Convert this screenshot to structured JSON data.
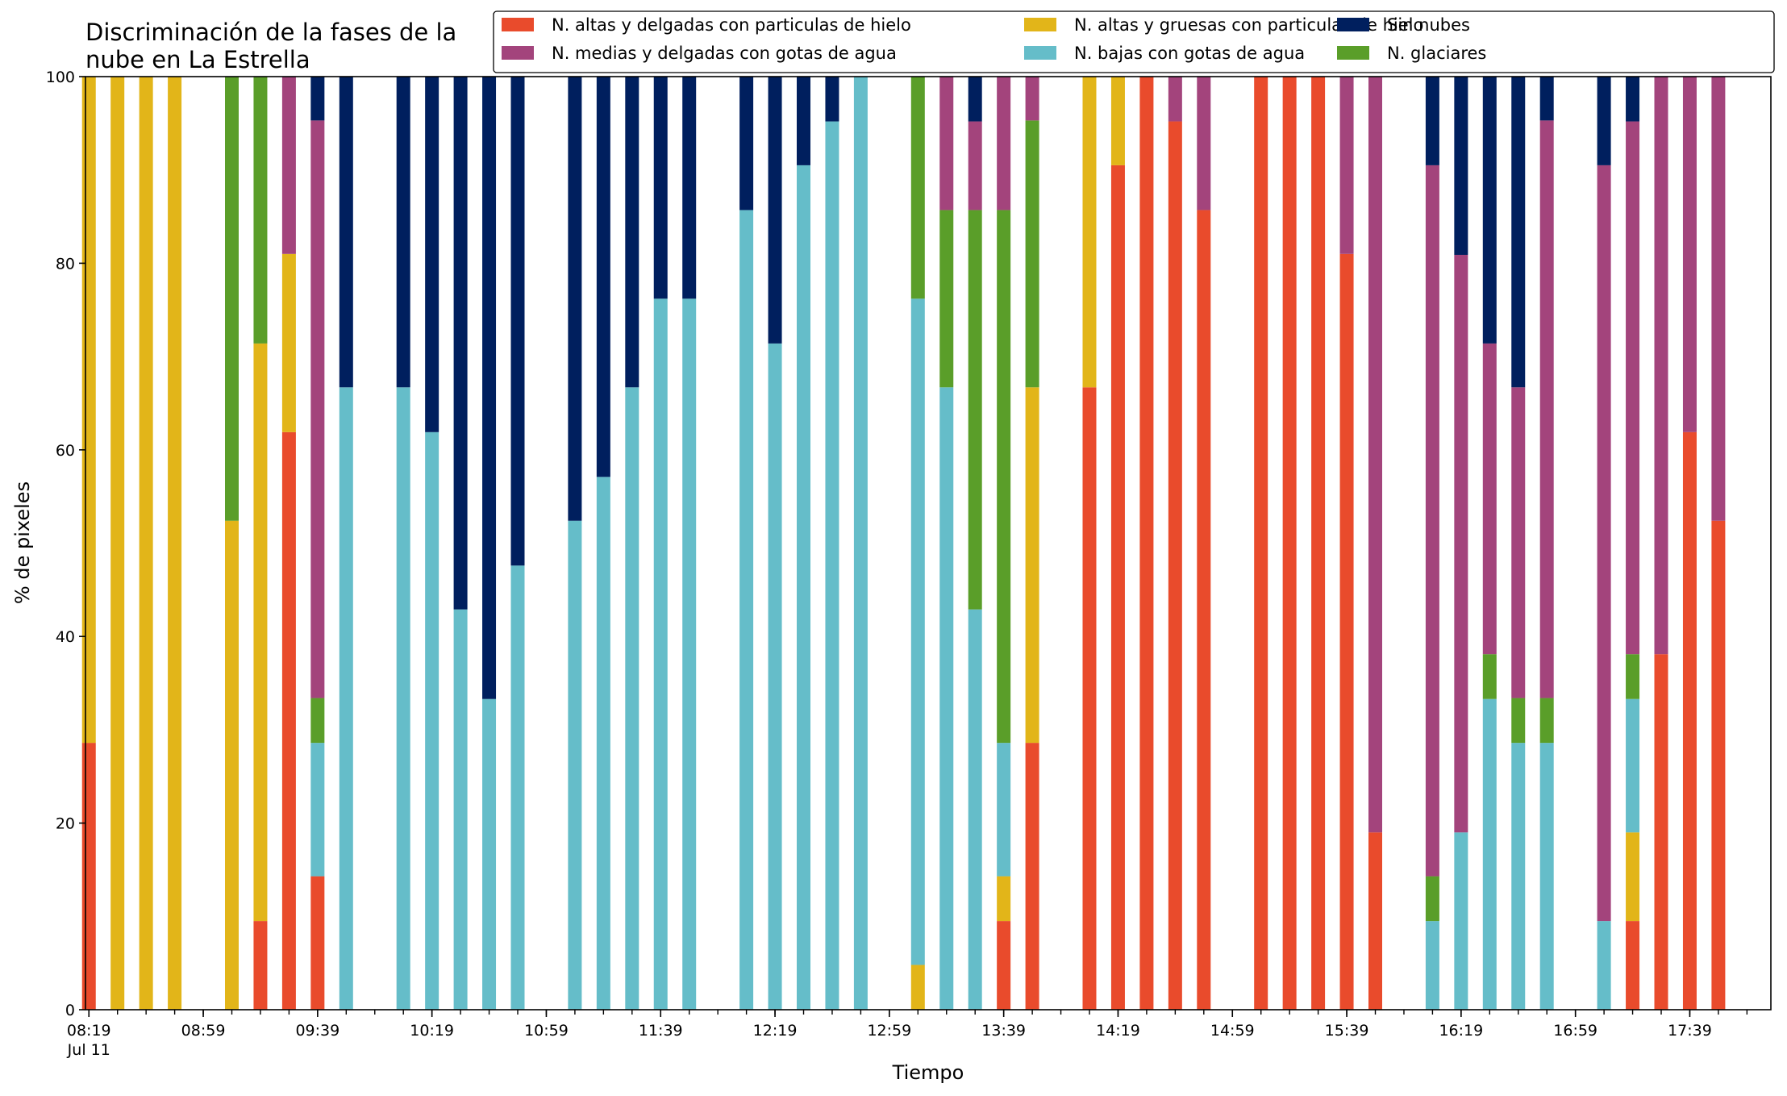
{
  "chart_data": {
    "type": "bar",
    "stacked": true,
    "title": "Discriminación de la fases de la\nnube en La Estrella",
    "xlabel": "Tiempo",
    "ylabel": "% de pixeles",
    "ylim": [
      0,
      100
    ],
    "yticks": [
      0,
      20,
      40,
      60,
      80,
      100
    ],
    "x_axis": {
      "start": "08:19",
      "end": "17:59",
      "minor_tick_minutes": 10,
      "major_tick_labels": [
        "08:19",
        "08:59",
        "09:39",
        "10:19",
        "10:59",
        "11:39",
        "12:19",
        "12:59",
        "13:39",
        "14:19",
        "14:59",
        "15:39",
        "16:19",
        "16:59",
        "17:39"
      ],
      "first_tick_sublabel": "Jul 11"
    },
    "grid": false,
    "legend": {
      "placement": "top-right",
      "columns": 3
    },
    "series": [
      {
        "name": "N. altas y delgadas con particulas de hielo",
        "color": "#E94B2C"
      },
      {
        "name": "N. altas y gruesas con particulas de hielo",
        "color": "#E2B519"
      },
      {
        "name": "N. bajas con gotas de agua",
        "color": "#65BDC9"
      },
      {
        "name": "N. glaciares",
        "color": "#5A9E29"
      },
      {
        "name": "N. medias y delgadas con gotas de agua",
        "color": "#A3447C"
      },
      {
        "name": "Sin nubes",
        "color": "#001F5E"
      }
    ],
    "legend_order": [
      0,
      4,
      1,
      2,
      5,
      3
    ],
    "times": [
      "08:19",
      "08:29",
      "08:39",
      "08:49",
      "08:59",
      "09:09",
      "09:19",
      "09:29",
      "09:39",
      "09:49",
      "09:59",
      "10:09",
      "10:19",
      "10:29",
      "10:39",
      "10:49",
      "10:59",
      "11:09",
      "11:19",
      "11:29",
      "11:39",
      "11:49",
      "11:59",
      "12:09",
      "12:19",
      "12:29",
      "12:39",
      "12:49",
      "12:59",
      "13:09",
      "13:19",
      "13:29",
      "13:39",
      "13:49",
      "13:59",
      "14:09",
      "14:19",
      "14:29",
      "14:39",
      "14:49",
      "14:59",
      "15:09",
      "15:19",
      "15:29",
      "15:39",
      "15:49",
      "15:59",
      "16:09",
      "16:19",
      "16:29",
      "16:39",
      "16:49",
      "16:59",
      "17:09",
      "17:19",
      "17:29",
      "17:39",
      "17:49"
    ],
    "bars": [
      {
        "time": "08:19",
        "values": [
          28.6,
          71.4,
          0,
          0,
          0,
          0
        ]
      },
      {
        "time": "08:29",
        "values": [
          0,
          100,
          0,
          0,
          0,
          0
        ]
      },
      {
        "time": "08:39",
        "values": [
          0,
          100,
          0,
          0,
          0,
          0
        ]
      },
      {
        "time": "08:49",
        "values": [
          0,
          100,
          0,
          0,
          0,
          0
        ]
      },
      {
        "time": "09:09",
        "values": [
          0,
          52.4,
          0,
          47.6,
          0,
          0
        ]
      },
      {
        "time": "09:19",
        "values": [
          9.5,
          61.9,
          0,
          28.6,
          0,
          0
        ]
      },
      {
        "time": "09:29",
        "values": [
          61.9,
          19.1,
          0,
          0,
          19.0,
          0
        ]
      },
      {
        "time": "09:39",
        "values": [
          14.3,
          0,
          14.3,
          4.8,
          61.9,
          4.7
        ]
      },
      {
        "time": "09:49",
        "values": [
          0,
          0,
          66.7,
          0,
          0,
          33.3
        ]
      },
      {
        "time": "10:09",
        "values": [
          0,
          0,
          66.7,
          0,
          0,
          33.3
        ]
      },
      {
        "time": "10:19",
        "values": [
          0,
          0,
          61.9,
          0,
          0,
          38.1
        ]
      },
      {
        "time": "10:29",
        "values": [
          0,
          0,
          42.9,
          0,
          0,
          57.1
        ]
      },
      {
        "time": "10:39",
        "values": [
          0,
          0,
          33.3,
          0,
          0,
          66.7
        ]
      },
      {
        "time": "10:49",
        "values": [
          0,
          0,
          47.6,
          0,
          0,
          52.4
        ]
      },
      {
        "time": "11:09",
        "values": [
          0,
          0,
          52.4,
          0,
          0,
          47.6
        ]
      },
      {
        "time": "11:19",
        "values": [
          0,
          0,
          57.1,
          0,
          0,
          42.9
        ]
      },
      {
        "time": "11:29",
        "values": [
          0,
          0,
          66.7,
          0,
          0,
          33.3
        ]
      },
      {
        "time": "11:39",
        "values": [
          0,
          0,
          76.2,
          0,
          0,
          23.8
        ]
      },
      {
        "time": "11:49",
        "values": [
          0,
          0,
          76.2,
          0,
          0,
          23.8
        ]
      },
      {
        "time": "12:09",
        "values": [
          0,
          0,
          85.7,
          0,
          0,
          14.3
        ]
      },
      {
        "time": "12:19",
        "values": [
          0,
          0,
          71.4,
          0,
          0,
          28.6
        ]
      },
      {
        "time": "12:29",
        "values": [
          0,
          0,
          90.5,
          0,
          0,
          9.5
        ]
      },
      {
        "time": "12:39",
        "values": [
          0,
          0,
          95.2,
          0,
          0,
          4.8
        ]
      },
      {
        "time": "12:49",
        "values": [
          0,
          0,
          100,
          0,
          0,
          0
        ]
      },
      {
        "time": "13:09",
        "values": [
          0,
          4.8,
          71.4,
          23.8,
          0,
          0
        ]
      },
      {
        "time": "13:19",
        "values": [
          0,
          0,
          66.7,
          19.0,
          14.3,
          0
        ]
      },
      {
        "time": "13:29",
        "values": [
          0,
          0,
          42.9,
          42.8,
          9.5,
          4.8
        ]
      },
      {
        "time": "13:39",
        "values": [
          9.5,
          4.8,
          14.3,
          57.1,
          14.3,
          0
        ]
      },
      {
        "time": "13:49",
        "values": [
          28.6,
          38.1,
          0,
          28.6,
          4.7,
          0
        ]
      },
      {
        "time": "14:09",
        "values": [
          66.7,
          33.3,
          0,
          0,
          0,
          0
        ]
      },
      {
        "time": "14:19",
        "values": [
          90.5,
          9.5,
          0,
          0,
          0,
          0
        ]
      },
      {
        "time": "14:29",
        "values": [
          100,
          0,
          0,
          0,
          0,
          0
        ]
      },
      {
        "time": "14:39",
        "values": [
          95.2,
          0,
          0,
          0,
          4.8,
          0
        ]
      },
      {
        "time": "14:49",
        "values": [
          85.7,
          0,
          0,
          0,
          14.3,
          0
        ]
      },
      {
        "time": "15:09",
        "values": [
          100,
          0,
          0,
          0,
          0,
          0
        ]
      },
      {
        "time": "15:19",
        "values": [
          100,
          0,
          0,
          0,
          0,
          0
        ]
      },
      {
        "time": "15:29",
        "values": [
          100,
          0,
          0,
          0,
          0,
          0
        ]
      },
      {
        "time": "15:39",
        "values": [
          81.0,
          0,
          0,
          0,
          19.0,
          0
        ]
      },
      {
        "time": "15:49",
        "values": [
          19.0,
          0,
          0,
          0,
          81.0,
          0
        ]
      },
      {
        "time": "16:09",
        "values": [
          0,
          0,
          9.5,
          4.8,
          76.2,
          9.5
        ]
      },
      {
        "time": "16:19",
        "values": [
          0,
          0,
          19.0,
          0,
          61.9,
          19.1
        ]
      },
      {
        "time": "16:29",
        "values": [
          0,
          0,
          33.3,
          4.8,
          33.3,
          28.6
        ]
      },
      {
        "time": "16:39",
        "values": [
          0,
          0,
          28.6,
          4.8,
          33.3,
          33.3
        ]
      },
      {
        "time": "16:49",
        "values": [
          0,
          0,
          28.6,
          4.8,
          61.9,
          4.7
        ]
      },
      {
        "time": "17:09",
        "values": [
          0,
          0,
          9.5,
          0,
          81.0,
          9.5
        ]
      },
      {
        "time": "17:19",
        "values": [
          9.5,
          9.5,
          14.3,
          4.8,
          57.1,
          4.8
        ]
      },
      {
        "time": "17:29",
        "values": [
          38.1,
          0,
          0,
          0,
          61.9,
          0
        ]
      },
      {
        "time": "17:39",
        "values": [
          61.9,
          0,
          0,
          0,
          38.1,
          0
        ]
      },
      {
        "time": "17:49",
        "values": [
          52.4,
          0,
          0,
          0,
          47.6,
          0
        ]
      }
    ]
  }
}
